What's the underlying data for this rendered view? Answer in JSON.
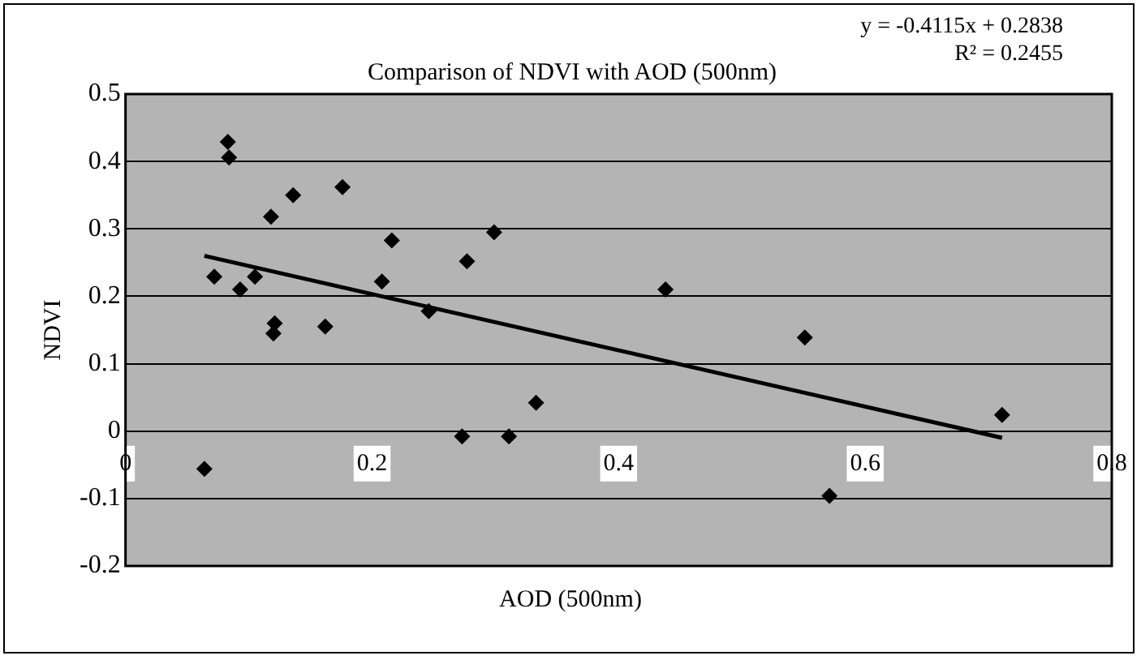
{
  "chart_data": {
    "type": "scatter",
    "title": "Comparison of NDVI with AOD (500nm)",
    "xlabel": "AOD (500nm)",
    "ylabel": "NDVI",
    "annotations": [
      "y = -0.4115x + 0.2838",
      "R² = 0.2455"
    ],
    "xlim": [
      0,
      0.8
    ],
    "xticks": [
      0,
      0.2,
      0.4,
      0.6,
      0.8
    ],
    "ylim": [
      -0.2,
      0.5
    ],
    "yticks": [
      -0.2,
      -0.1,
      0,
      0.1,
      0.2,
      0.3,
      0.4,
      0.5
    ],
    "grid": "y",
    "legend": false,
    "marker": "diamond",
    "series": [
      {
        "type": "scatter",
        "color": "#000000",
        "x": [
          0.064,
          0.083,
          0.084,
          0.072,
          0.093,
          0.105,
          0.118,
          0.136,
          0.121,
          0.12,
          0.162,
          0.176,
          0.216,
          0.208,
          0.246,
          0.277,
          0.299,
          0.273,
          0.311,
          0.333,
          0.438,
          0.551,
          0.711,
          0.571
        ],
        "values": [
          -0.056,
          0.429,
          0.406,
          0.229,
          0.21,
          0.229,
          0.318,
          0.35,
          0.16,
          0.145,
          0.155,
          0.362,
          0.283,
          0.222,
          0.178,
          0.252,
          0.295,
          -0.008,
          -0.008,
          0.042,
          0.21,
          0.139,
          0.024,
          -0.096
        ]
      },
      {
        "type": "line",
        "color": "#000000",
        "marker": "none",
        "x": [
          0.064,
          0.711
        ],
        "values": [
          0.26,
          -0.01
        ]
      }
    ]
  }
}
